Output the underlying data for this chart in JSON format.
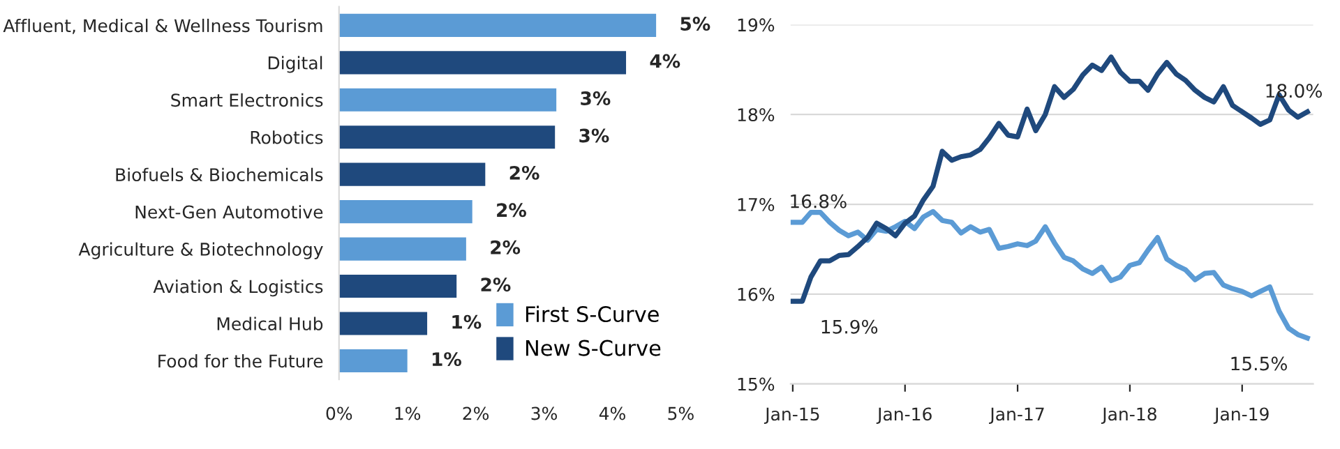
{
  "chart_data": [
    {
      "type": "bar",
      "orientation": "horizontal",
      "categories": [
        "Affluent, Medical & Wellness Tourism",
        "Digital",
        "Smart Electronics",
        "Robotics",
        "Biofuels & Biochemicals",
        "Next-Gen Automotive",
        "Agriculture & Biotechnology",
        "Aviation & Logistics",
        "Medical Hub",
        "Food for the Future"
      ],
      "series": [
        {
          "name": "First S-Curve",
          "color": "#5b9bd5",
          "values": [
            4.64,
            null,
            3.18,
            null,
            null,
            1.95,
            1.86,
            null,
            null,
            1.0
          ],
          "value_labels": [
            "5%",
            null,
            "3%",
            null,
            null,
            "2%",
            "2%",
            null,
            null,
            "1%"
          ]
        },
        {
          "name": "New S-Curve",
          "color": "#1f497d",
          "values": [
            null,
            4.2,
            null,
            3.16,
            2.14,
            null,
            null,
            1.72,
            1.29,
            null
          ],
          "value_labels": [
            null,
            "4%",
            null,
            "3%",
            "2%",
            null,
            null,
            "2%",
            "1%",
            null
          ]
        }
      ],
      "xlim": [
        0,
        5
      ],
      "xticks": [
        {
          "value": 0,
          "label": "0%"
        },
        {
          "value": 1,
          "label": "1%"
        },
        {
          "value": 2,
          "label": "2%"
        },
        {
          "value": 3,
          "label": "3%"
        },
        {
          "value": 4,
          "label": "4%"
        },
        {
          "value": 5,
          "label": "5%"
        }
      ],
      "legend": "bottom right",
      "grid": false
    },
    {
      "type": "line",
      "x": [
        "2015-01",
        "2015-02",
        "2015-03",
        "2015-04",
        "2015-05",
        "2015-06",
        "2015-07",
        "2015-08",
        "2015-09",
        "2015-10",
        "2015-11",
        "2015-12",
        "2016-01",
        "2016-02",
        "2016-03",
        "2016-04",
        "2016-05",
        "2016-06",
        "2016-07",
        "2016-08",
        "2016-09",
        "2016-10",
        "2016-11",
        "2016-12",
        "2017-01",
        "2017-02",
        "2017-03",
        "2017-04",
        "2017-05",
        "2017-06",
        "2017-07",
        "2017-08",
        "2017-09",
        "2017-10",
        "2017-11",
        "2017-12",
        "2018-01",
        "2018-02",
        "2018-03",
        "2018-04",
        "2018-05",
        "2018-06",
        "2018-07",
        "2018-08",
        "2018-09",
        "2018-10",
        "2018-11",
        "2018-12",
        "2019-01",
        "2019-02",
        "2019-03",
        "2019-04",
        "2019-05",
        "2019-06",
        "2019-07",
        "2019-08"
      ],
      "series": [
        {
          "color": "#5b9bd5",
          "values": [
            16.8,
            16.8,
            16.91,
            16.91,
            16.8,
            16.71,
            16.65,
            16.69,
            16.6,
            16.72,
            16.7,
            16.75,
            16.81,
            16.73,
            16.86,
            16.92,
            16.82,
            16.8,
            16.68,
            16.75,
            16.69,
            16.72,
            16.51,
            16.53,
            16.56,
            16.54,
            16.59,
            16.75,
            16.57,
            16.41,
            16.37,
            16.28,
            16.23,
            16.3,
            16.15,
            16.19,
            16.32,
            16.35,
            16.49,
            16.63,
            16.39,
            16.32,
            16.27,
            16.16,
            16.23,
            16.24,
            16.1,
            16.06,
            16.03,
            15.98,
            16.03,
            16.08,
            15.81,
            15.62,
            15.55,
            15.51
          ]
        },
        {
          "color": "#1f497d",
          "values": [
            15.92,
            15.92,
            16.19,
            16.37,
            16.37,
            16.43,
            16.44,
            16.53,
            16.63,
            16.79,
            16.73,
            16.65,
            16.79,
            16.87,
            17.05,
            17.2,
            17.59,
            17.49,
            17.53,
            17.55,
            17.61,
            17.74,
            17.9,
            17.77,
            17.75,
            18.06,
            17.82,
            18.0,
            18.31,
            18.19,
            18.28,
            18.44,
            18.55,
            18.49,
            18.64,
            18.47,
            18.37,
            18.37,
            18.27,
            18.45,
            18.58,
            18.45,
            18.38,
            18.27,
            18.19,
            18.14,
            18.31,
            18.1,
            18.03,
            17.96,
            17.89,
            17.94,
            18.22,
            18.05,
            17.97,
            18.03
          ]
        }
      ],
      "xlim": [
        "2014-12-25",
        "2019-08-20"
      ],
      "xticks": [
        {
          "value": "2015-01",
          "label": "Jan-15"
        },
        {
          "value": "2016-01",
          "label": "Jan-16"
        },
        {
          "value": "2017-01",
          "label": "Jan-17"
        },
        {
          "value": "2018-01",
          "label": "Jan-18"
        },
        {
          "value": "2019-01",
          "label": "Jan-19"
        }
      ],
      "ylim": [
        15,
        19
      ],
      "yticks": [
        {
          "value": 15,
          "label": "15%"
        },
        {
          "value": 16,
          "label": "16%"
        },
        {
          "value": 17,
          "label": "17%"
        },
        {
          "value": 18,
          "label": "18%"
        },
        {
          "value": 19,
          "label": "19%"
        }
      ],
      "grid": "y",
      "marker": "none",
      "line_style": "solid",
      "annotations": [
        {
          "text": "16.8%",
          "x": "2015-01",
          "y": 16.8
        },
        {
          "text": "15.9%",
          "x": "2015-01",
          "y": 15.92
        },
        {
          "text": "18.0%",
          "x": "2019-08",
          "y": 18.03
        },
        {
          "text": "15.5%",
          "x": "2019-08",
          "y": 15.51
        }
      ]
    }
  ]
}
